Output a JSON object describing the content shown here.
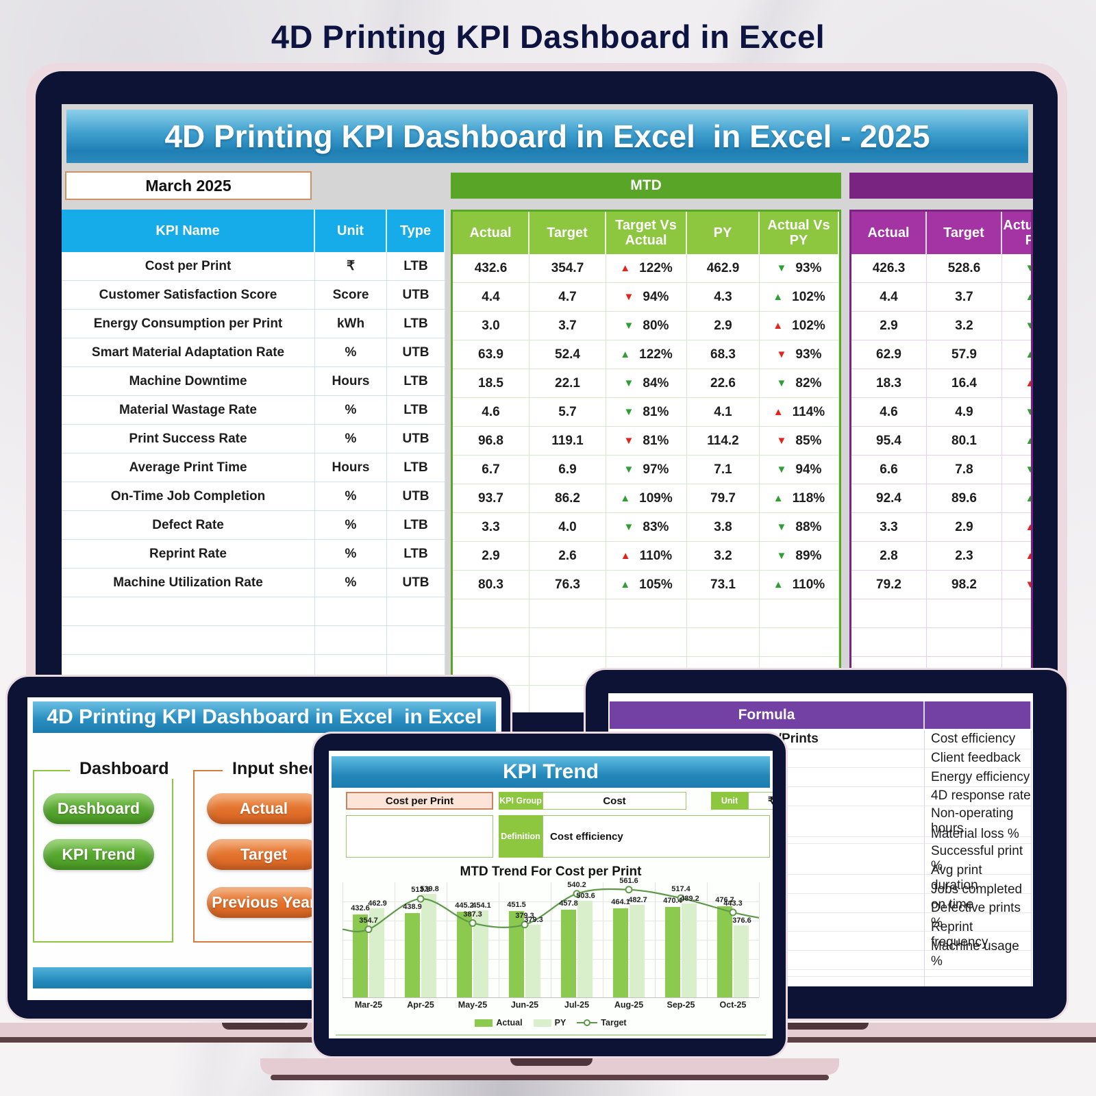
{
  "page_title": "4D Printing KPI Dashboard in Excel",
  "colors": {
    "accent_blue": "#16abe9",
    "accent_green": "#58a527",
    "light_green": "#8dc63f",
    "accent_purple": "#7a2481",
    "magenta": "#a434a4",
    "arrow_red": "#e1251b",
    "arrow_green": "#2f9e33",
    "bar_actual": "#8cc94f",
    "bar_py": "#d9eecb",
    "target_line": "#5d9948"
  },
  "main_dashboard": {
    "header": "4D Printing KPI Dashboard in Excel  in Excel - 2025",
    "month": "March 2025",
    "mtd_label": "MTD",
    "columns": {
      "kpi": "KPI Name",
      "unit": "Unit",
      "type": "Type",
      "actual": "Actual",
      "target": "Target",
      "target_vs_actual": "Target Vs Actual",
      "py": "PY",
      "actual_vs_py": "Actual Vs PY"
    },
    "ytd_columns": {
      "actual": "Actual",
      "target": "Target",
      "third": "Actual Vs PY"
    },
    "rows": [
      {
        "kpi": "Cost per Print",
        "unit": "₹",
        "type": "LTB",
        "actual": "432.6",
        "target": "354.7",
        "tva": "122%",
        "tva_dir": "up",
        "tva_color": "red",
        "py": "462.9",
        "avpy": "93%",
        "avpy_dir": "down",
        "avpy_color": "green",
        "ytd_actual": "426.3",
        "ytd_target": "528.6",
        "ytd_dir": "down",
        "ytd_color": "green"
      },
      {
        "kpi": "Customer Satisfaction Score",
        "unit": "Score",
        "type": "UTB",
        "actual": "4.4",
        "target": "4.7",
        "tva": "94%",
        "tva_dir": "down",
        "tva_color": "red",
        "py": "4.3",
        "avpy": "102%",
        "avpy_dir": "up",
        "avpy_color": "green",
        "ytd_actual": "4.4",
        "ytd_target": "3.7",
        "ytd_dir": "up",
        "ytd_color": "green"
      },
      {
        "kpi": "Energy Consumption per Print",
        "unit": "kWh",
        "type": "LTB",
        "actual": "3.0",
        "target": "3.7",
        "tva": "80%",
        "tva_dir": "down",
        "tva_color": "green",
        "py": "2.9",
        "avpy": "102%",
        "avpy_dir": "up",
        "avpy_color": "red",
        "ytd_actual": "2.9",
        "ytd_target": "3.2",
        "ytd_dir": "down",
        "ytd_color": "green"
      },
      {
        "kpi": "Smart Material Adaptation Rate",
        "unit": "%",
        "type": "UTB",
        "actual": "63.9",
        "target": "52.4",
        "tva": "122%",
        "tva_dir": "up",
        "tva_color": "green",
        "py": "68.3",
        "avpy": "93%",
        "avpy_dir": "down",
        "avpy_color": "red",
        "ytd_actual": "62.9",
        "ytd_target": "57.9",
        "ytd_dir": "up",
        "ytd_color": "green"
      },
      {
        "kpi": "Machine Downtime",
        "unit": "Hours",
        "type": "LTB",
        "actual": "18.5",
        "target": "22.1",
        "tva": "84%",
        "tva_dir": "down",
        "tva_color": "green",
        "py": "22.6",
        "avpy": "82%",
        "avpy_dir": "down",
        "avpy_color": "green",
        "ytd_actual": "18.3",
        "ytd_target": "16.4",
        "ytd_dir": "up",
        "ytd_color": "red"
      },
      {
        "kpi": "Material Wastage Rate",
        "unit": "%",
        "type": "LTB",
        "actual": "4.6",
        "target": "5.7",
        "tva": "81%",
        "tva_dir": "down",
        "tva_color": "green",
        "py": "4.1",
        "avpy": "114%",
        "avpy_dir": "up",
        "avpy_color": "red",
        "ytd_actual": "4.6",
        "ytd_target": "4.9",
        "ytd_dir": "down",
        "ytd_color": "green"
      },
      {
        "kpi": "Print Success Rate",
        "unit": "%",
        "type": "UTB",
        "actual": "96.8",
        "target": "119.1",
        "tva": "81%",
        "tva_dir": "down",
        "tva_color": "red",
        "py": "114.2",
        "avpy": "85%",
        "avpy_dir": "down",
        "avpy_color": "red",
        "ytd_actual": "95.4",
        "ytd_target": "80.1",
        "ytd_dir": "up",
        "ytd_color": "green"
      },
      {
        "kpi": "Average Print Time",
        "unit": "Hours",
        "type": "LTB",
        "actual": "6.7",
        "target": "6.9",
        "tva": "97%",
        "tva_dir": "down",
        "tva_color": "green",
        "py": "7.1",
        "avpy": "94%",
        "avpy_dir": "down",
        "avpy_color": "green",
        "ytd_actual": "6.6",
        "ytd_target": "7.8",
        "ytd_dir": "down",
        "ytd_color": "green"
      },
      {
        "kpi": "On-Time Job Completion",
        "unit": "%",
        "type": "UTB",
        "actual": "93.7",
        "target": "86.2",
        "tva": "109%",
        "tva_dir": "up",
        "tva_color": "green",
        "py": "79.7",
        "avpy": "118%",
        "avpy_dir": "up",
        "avpy_color": "green",
        "ytd_actual": "92.4",
        "ytd_target": "89.6",
        "ytd_dir": "up",
        "ytd_color": "green"
      },
      {
        "kpi": "Defect Rate",
        "unit": "%",
        "type": "LTB",
        "actual": "3.3",
        "target": "4.0",
        "tva": "83%",
        "tva_dir": "down",
        "tva_color": "green",
        "py": "3.8",
        "avpy": "88%",
        "avpy_dir": "down",
        "avpy_color": "green",
        "ytd_actual": "3.3",
        "ytd_target": "2.9",
        "ytd_dir": "up",
        "ytd_color": "red"
      },
      {
        "kpi": "Reprint Rate",
        "unit": "%",
        "type": "LTB",
        "actual": "2.9",
        "target": "2.6",
        "tva": "110%",
        "tva_dir": "up",
        "tva_color": "red",
        "py": "3.2",
        "avpy": "89%",
        "avpy_dir": "down",
        "avpy_color": "green",
        "ytd_actual": "2.8",
        "ytd_target": "2.3",
        "ytd_dir": "up",
        "ytd_color": "red"
      },
      {
        "kpi": "Machine Utilization Rate",
        "unit": "%",
        "type": "UTB",
        "actual": "80.3",
        "target": "76.3",
        "tva": "105%",
        "tva_dir": "up",
        "tva_color": "green",
        "py": "73.1",
        "avpy": "110%",
        "avpy_dir": "up",
        "avpy_color": "green",
        "ytd_actual": "79.2",
        "ytd_target": "98.2",
        "ytd_dir": "down",
        "ytd_color": "red"
      }
    ]
  },
  "nav_laptop": {
    "header": "4D Printing KPI Dashboard in Excel  in Excel",
    "groups": [
      {
        "label": "Dashboard",
        "buttons": [
          "Dashboard",
          "KPI Trend"
        ]
      },
      {
        "label": "Input sheets",
        "buttons": [
          "Actual",
          "Target",
          "Previous Year"
        ]
      }
    ]
  },
  "formula_sheet": {
    "header_formula": "Formula",
    "header_desc": "",
    "first_formula": "Total Cost/Prints",
    "descriptions": [
      "Cost efficiency",
      "Client feedback",
      "Energy efficiency",
      "4D response rate",
      "Non-operating hours",
      "Material loss %",
      "Successful print %",
      "Avg print duration",
      "Jobs completed on time",
      "Defective prints %",
      "Reprint frequency",
      "Machine usage %"
    ]
  },
  "kpi_trend": {
    "header": "KPI Trend",
    "kpi_name": "Cost per Print",
    "kpi_group_label": "KPI Group",
    "kpi_group_value": "Cost",
    "unit_label": "Unit",
    "unit_value": "₹",
    "definition_label": "Definition",
    "definition_value": "Cost efficiency",
    "chart_data": {
      "type": "bar",
      "title": "MTD Trend For Cost per Print",
      "categories": [
        "Mar-25",
        "Apr-25",
        "May-25",
        "Jun-25",
        "Jul-25",
        "Aug-25",
        "Sep-25",
        "Oct-25"
      ],
      "series": [
        {
          "name": "Actual",
          "kind": "bar",
          "values": [
            432.6,
            438.9,
            445.2,
            451.5,
            457.8,
            464.1,
            470.4,
            476.7
          ]
        },
        {
          "name": "PY",
          "kind": "bar",
          "values": [
            462.9,
            539.8,
            454.1,
            379.3,
            503.6,
            482.7,
            489.2,
            376.6
          ]
        },
        {
          "name": "Target",
          "kind": "line",
          "values": [
            354.7,
            513.5,
            387.3,
            379.3,
            540.2,
            561.6,
            517.4,
            443.3
          ]
        }
      ],
      "ylim": [
        0,
        600
      ],
      "grid": true,
      "legend_position": "bottom"
    }
  }
}
